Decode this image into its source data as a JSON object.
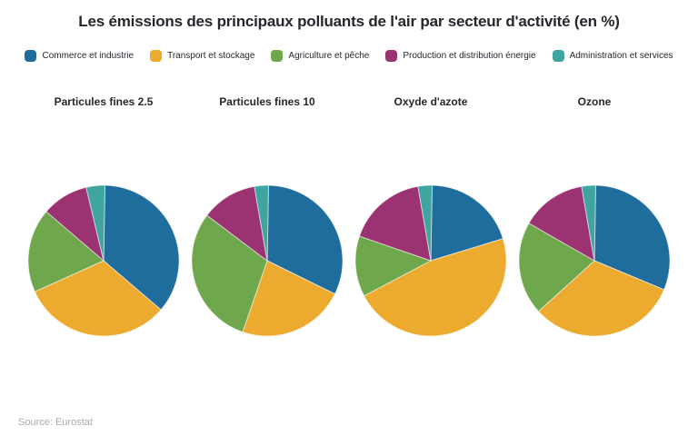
{
  "title": "Les émissions des principaux polluants de l'air par secteur d'activité (en %)",
  "source": "Source: Eurostat",
  "chart_data": {
    "type": "pie",
    "title": "Les émissions des principaux polluants de l'air par secteur d'activité (en %)",
    "unit": "%",
    "legend_position": "top",
    "start_angle_deg": 1,
    "series_labels": [
      "Commerce et industrie",
      "Transport et stockage",
      "Agriculture et pêche",
      "Production et distribution énergie",
      "Administration et services"
    ],
    "colors": [
      "#1f6d9d",
      "#ecab2e",
      "#6fa84c",
      "#9b3271",
      "#3fa5a1"
    ],
    "pies": [
      {
        "title": "Particules fines 2.5",
        "values": [
          36,
          32,
          18,
          10,
          4
        ]
      },
      {
        "title": "Particules fines 10",
        "values": [
          32,
          23,
          30,
          12,
          3
        ]
      },
      {
        "title": "Oxyde d'azote",
        "values": [
          20,
          47,
          13,
          17,
          3
        ]
      },
      {
        "title": "Ozone",
        "values": [
          31,
          32,
          20,
          14,
          3
        ]
      }
    ],
    "source": "Source: Eurostat"
  }
}
